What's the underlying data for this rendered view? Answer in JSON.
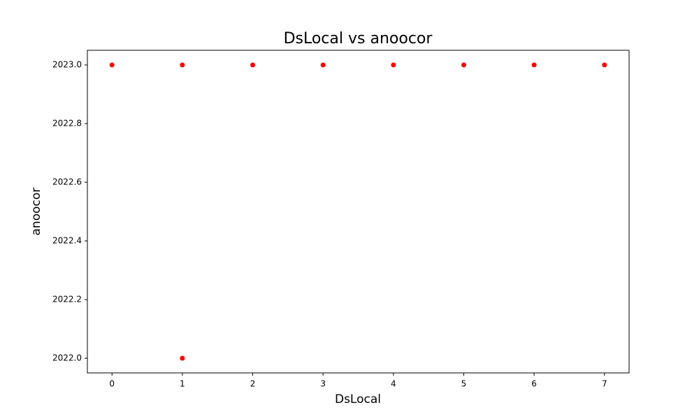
{
  "chart_data": {
    "type": "scatter",
    "title": "DsLocal vs anoocor",
    "x_label": "DsLocal",
    "y_label": "anoocor",
    "series": [
      {
        "color": "#ff0000",
        "x": [
          0,
          1,
          1,
          2,
          3,
          4,
          5,
          6,
          7
        ],
        "values": [
          2023,
          2023,
          2022,
          2023,
          2023,
          2023,
          2023,
          2023,
          2023
        ]
      }
    ],
    "xlim": [
      -0.35,
      7.35
    ],
    "xticks": [
      0,
      1,
      2,
      3,
      4,
      5,
      6,
      7
    ],
    "ylim": [
      2021.95,
      2023.05
    ],
    "yticks": [
      {
        "value": 2022,
        "label": "2022.0"
      },
      2022.2,
      2022.4,
      2022.6,
      2022.8,
      {
        "value": 2023,
        "label": "2023.0"
      }
    ],
    "grid": false
  }
}
